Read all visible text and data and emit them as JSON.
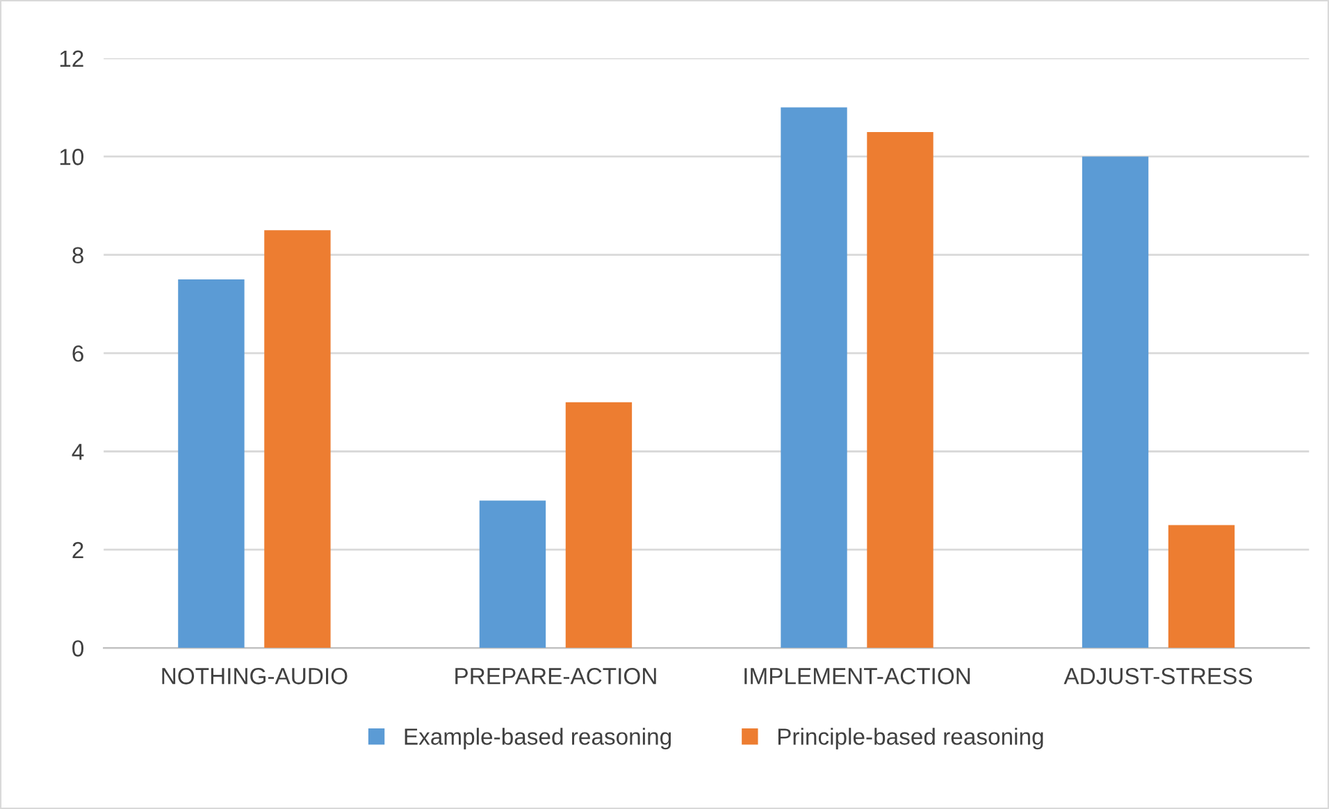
{
  "chart_data": {
    "type": "bar",
    "categories": [
      "NOTHING-AUDIO",
      "PREPARE-ACTION",
      "IMPLEMENT-ACTION",
      "ADJUST-STRESS"
    ],
    "series": [
      {
        "name": "Example-based reasoning",
        "color": "#5b9bd5",
        "values": [
          7.5,
          3,
          11,
          10
        ]
      },
      {
        "name": "Principle-based reasoning",
        "color": "#ed7d31",
        "values": [
          8.5,
          5,
          10.5,
          2.5
        ]
      }
    ],
    "ylim": [
      0,
      12
    ],
    "yticks": [
      0,
      2,
      4,
      6,
      8,
      10,
      12
    ],
    "grid": "y",
    "legend": "bottom"
  }
}
